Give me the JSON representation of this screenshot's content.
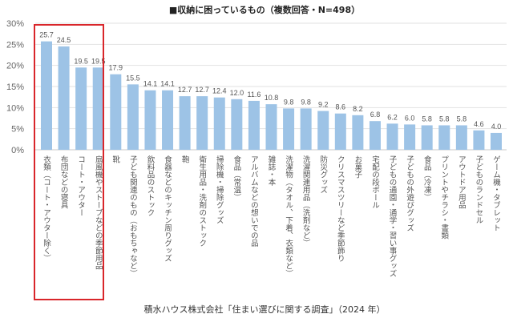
{
  "chart_data": {
    "type": "bar",
    "title": "■収納に困っているもの（複数回答・N=498）",
    "xlabel": "",
    "ylabel": "",
    "ylim": [
      0,
      30
    ],
    "yticks": [
      "0%",
      "5%",
      "10%",
      "15%",
      "20%",
      "25%",
      "30%"
    ],
    "grid": true,
    "bar_color": "#9dc3e6",
    "highlight_color": "#d9262b",
    "highlighted_categories": [
      0,
      1,
      2,
      3
    ],
    "categories": [
      "衣類（コート・アウター除く）",
      "布団などの寝具",
      "コート・アウター",
      "扇風機やストーブなどの季節用品",
      "靴",
      "子ども関連のもの（おもちゃなど）",
      "飲料品のストック",
      "食器などのキッチン周りグッズ",
      "鞄",
      "衛生用品・洗剤のストック",
      "掃除機・掃除グッズ",
      "食品（常温）",
      "アルバムなどの想いでの品",
      "雑誌・本",
      "洗濯物（タオル、下着、衣類など）",
      "洗濯関連用品（洗剤など）",
      "防災グッズ",
      "クリスマスツリーなど季節飾り",
      "お菓子",
      "宅配の段ボール",
      "子どもの通園・通学・習い事グッズ",
      "子どもの外遊びグッズ",
      "食品（冷凍）",
      "プリントやチラシ・書類",
      "アウトドア用品",
      "子どものランドセル",
      "ゲーム機・タブレット"
    ],
    "values": [
      25.7,
      24.5,
      19.5,
      19.5,
      17.9,
      15.5,
      14.1,
      14.1,
      12.7,
      12.7,
      12.4,
      12.0,
      11.6,
      10.8,
      9.8,
      9.8,
      9.2,
      8.6,
      8.2,
      6.8,
      6.2,
      6.0,
      5.8,
      5.8,
      5.8,
      4.6,
      4.0
    ],
    "value_labels": [
      "25.7",
      "24.5",
      "19.5",
      "19.5",
      "17.9",
      "15.5",
      "14.1",
      "14.1",
      "12.7",
      "12.7",
      "12.4",
      "12.0",
      "11.6",
      "10.8",
      "9.8",
      "9.8",
      "9.2",
      "8.6",
      "8.2",
      "6.8",
      "6.2",
      "6.0",
      "5.8",
      "5.8",
      "5.8",
      "4.6",
      "4.0"
    ]
  },
  "footer": "積水ハウス株式会社「住まい選びに関する調査」（2024 年）"
}
